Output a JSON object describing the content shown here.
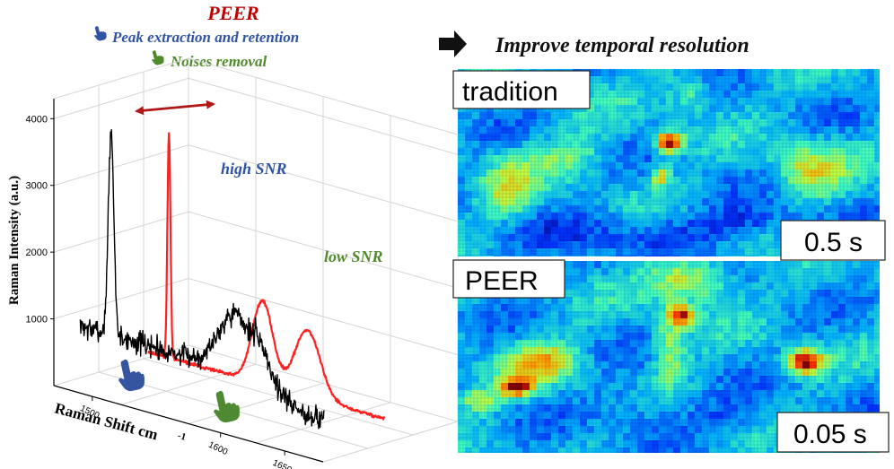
{
  "left_panel": {
    "title": "PEER",
    "bullet1": "Peak extraction and retention",
    "bullet2": "Noises removal",
    "annotation_high": "high SNR",
    "annotation_low": "low SNR",
    "colors": {
      "title": "#c00000",
      "bullet1": "#2f54a6",
      "bullet2": "#4f8a2c",
      "high_series": "#000000",
      "low_series": "#ff2020",
      "arrow": "#b01818",
      "hand_blue": "#3555a0",
      "hand_green": "#4d8a32"
    },
    "icons": [
      "pointing-hand-blue-icon",
      "pointing-hand-green-icon"
    ]
  },
  "right_panel": {
    "header": "Improve temporal resolution",
    "arrow_icon": "right-arrow-icon",
    "map1": {
      "label": "tradition",
      "time": "0.5 s"
    },
    "map2": {
      "label": "PEER",
      "time": "0.05 s"
    },
    "colormap": [
      "#00007f",
      "#0033ff",
      "#00b3ff",
      "#40ffbf",
      "#c0ff40",
      "#ffb000",
      "#ff3000",
      "#7f0000"
    ]
  },
  "chart_data": {
    "type": "line",
    "xlabel": "Raman Shift cm",
    "xlabel_superscript": "-1",
    "ylabel": "Raman Intensity (a.u.)",
    "yticks": [
      1000,
      2000,
      3000,
      4000
    ],
    "xticks": [
      1500,
      1600,
      1650
    ],
    "ylim": [
      0,
      4300
    ],
    "xlim": [
      1470,
      1680
    ],
    "series": [
      {
        "name": "high SNR",
        "color": "#000000",
        "peaks": [
          {
            "center": 1502,
            "width": 2.2,
            "height": 3000
          },
          {
            "center": 1598,
            "width": 12,
            "height": 850
          },
          {
            "center": 1618,
            "width": 6,
            "height": 350
          }
        ],
        "baseline": 860,
        "tail_baseline": 500,
        "noise": 170
      },
      {
        "name": "low SNR",
        "color": "#ff2020",
        "peaks": [
          {
            "center": 1502,
            "width": 1.2,
            "height": 3350
          },
          {
            "center": 1575,
            "width": 8,
            "height": 1250
          },
          {
            "center": 1610,
            "width": 10,
            "height": 1000
          }
        ],
        "baseline": 260,
        "noise": 25
      }
    ]
  }
}
